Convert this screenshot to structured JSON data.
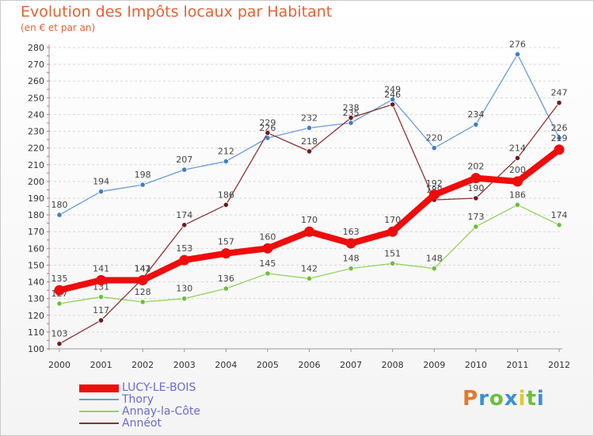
{
  "header": {
    "title": "Evolution des Impôts locaux par Habitant",
    "subtitle": "(en € et par an)"
  },
  "logo": {
    "letters": [
      "P",
      "r",
      "o",
      "x",
      "i",
      "t",
      "i"
    ],
    "colors": [
      "#e8792b",
      "#3a8fd9",
      "#6cbf3a",
      "#3a8fd9",
      "#e8c62b",
      "#6cbf3a",
      "#3a8fd9"
    ]
  },
  "chart_data": {
    "type": "line",
    "title": "Evolution des Impôts locaux par Habitant",
    "subtitle": "(en € et par an)",
    "xlabel": "",
    "ylabel": "",
    "ylim": [
      100,
      280
    ],
    "yticks": [
      "100",
      "110",
      "120",
      "130",
      "140",
      "150",
      "160",
      "170",
      "180",
      "190",
      "200",
      "210",
      "220",
      "230",
      "240",
      "250",
      "260",
      "270",
      "280"
    ],
    "x": [
      "2000",
      "2001",
      "2002",
      "2003",
      "2004",
      "2005",
      "2006",
      "2007",
      "2008",
      "2009",
      "2010",
      "2011",
      "2012"
    ],
    "grid": "horizontal",
    "legend_position": "bottom-left",
    "series": [
      {
        "name": "Thory",
        "color": "#6a9bd8",
        "marker": "#3f7fc4",
        "width": "thin",
        "values": [
          180,
          194,
          198,
          207,
          212,
          226,
          232,
          235,
          249,
          220,
          234,
          276,
          226
        ],
        "labels": [
          "180",
          "194",
          "198",
          "207",
          "212",
          "226",
          "232",
          "235",
          "249",
          "220",
          "234",
          "276",
          "226"
        ]
      },
      {
        "name": "Annay-la-Côte",
        "color": "#8fd45c",
        "marker": "#6cbf3a",
        "width": "thin",
        "values": [
          127,
          131,
          128,
          130,
          136,
          145,
          142,
          148,
          151,
          148,
          173,
          186,
          174
        ],
        "labels": [
          "127",
          "131",
          "128",
          "130",
          "136",
          "145",
          "142",
          "148",
          "151",
          "148",
          "173",
          "186",
          "174"
        ]
      },
      {
        "name": "Annéot",
        "color": "#8c3232",
        "marker": "#6b1f1f",
        "width": "thin",
        "values": [
          103,
          117,
          142,
          174,
          186,
          229,
          218,
          238,
          246,
          189,
          190,
          214,
          247
        ],
        "labels": [
          "103",
          "117",
          "142",
          "174",
          "186",
          "229",
          "218",
          "238",
          "246",
          "189",
          "190",
          "214",
          "247"
        ]
      },
      {
        "name": "LUCY-LE-BOIS",
        "color": "#ee0c0c",
        "marker": "#ee0c0c",
        "width": "thick",
        "values": [
          135,
          141,
          141,
          153,
          157,
          160,
          170,
          163,
          170,
          192,
          202,
          200,
          219
        ],
        "labels": [
          "135",
          "141",
          "141",
          "153",
          "157",
          "160",
          "170",
          "163",
          "170",
          "192",
          "202",
          "200",
          "219"
        ]
      }
    ],
    "legend_order": [
      "LUCY-LE-BOIS",
      "Thory",
      "Annay-la-Côte",
      "Annéot"
    ]
  }
}
